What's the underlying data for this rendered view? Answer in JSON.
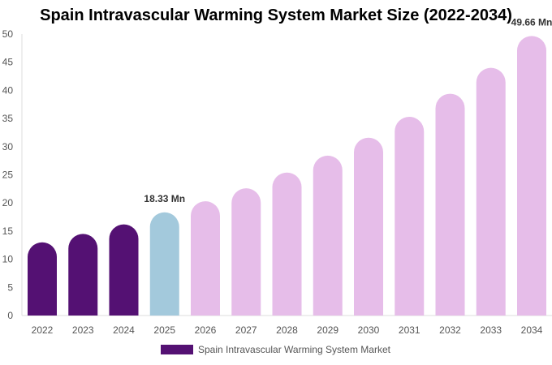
{
  "chart_data": {
    "type": "bar",
    "title": "Spain Intravascular Warming System Market Size (2022-2034)",
    "xlabel": "",
    "ylabel": "",
    "categories": [
      "2022",
      "2023",
      "2024",
      "2025",
      "2026",
      "2027",
      "2028",
      "2029",
      "2030",
      "2031",
      "2032",
      "2033",
      "2034"
    ],
    "series": [
      {
        "name": "Spain Intravascular Warming System Market",
        "values": [
          13.0,
          14.5,
          16.2,
          18.33,
          20.3,
          22.6,
          25.4,
          28.4,
          31.6,
          35.3,
          39.4,
          44.0,
          49.66
        ]
      }
    ],
    "ylim": [
      0,
      50
    ],
    "yticks": [
      0,
      5,
      10,
      15,
      20,
      25,
      30,
      35,
      40,
      45,
      50
    ],
    "data_labels": [
      {
        "index": 3,
        "text": "18.33 Mn"
      },
      {
        "index": 12,
        "text": "49.66 Mn"
      }
    ],
    "grid": false,
    "legend_position": "bottom",
    "colors": {
      "historical": "#541173",
      "base_year": "#a3c9dc",
      "forecast": "#e6bde9",
      "axis": "#dddddd"
    },
    "color_groups": [
      "historical",
      "historical",
      "historical",
      "base_year",
      "forecast",
      "forecast",
      "forecast",
      "forecast",
      "forecast",
      "forecast",
      "forecast",
      "forecast",
      "forecast"
    ]
  }
}
